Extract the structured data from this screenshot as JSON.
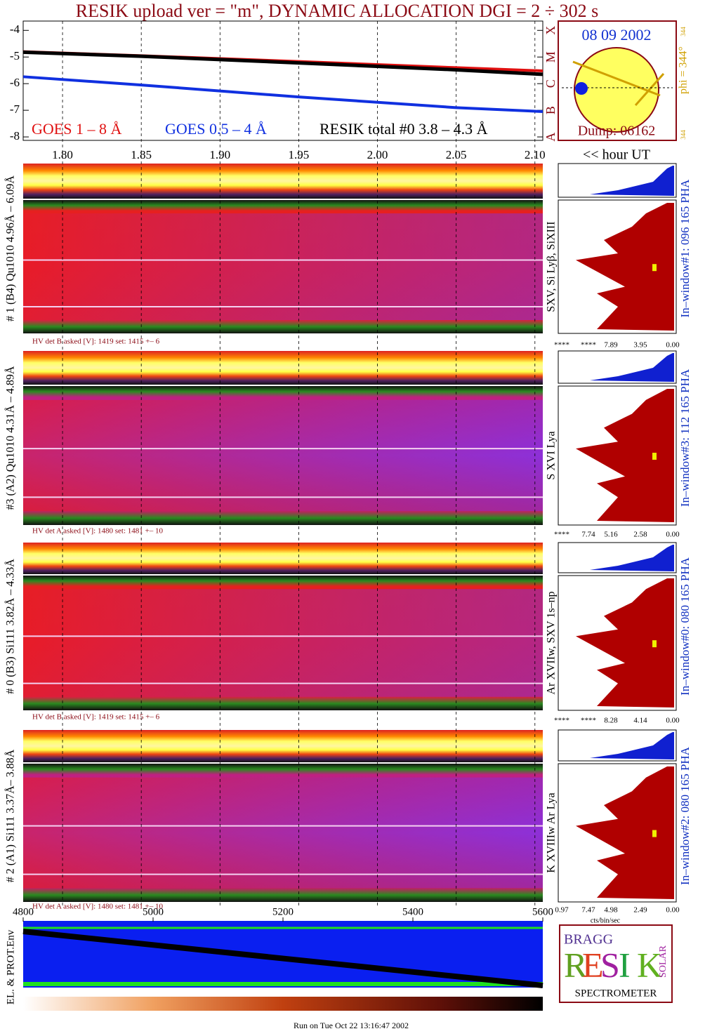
{
  "header": {
    "title": "RESIK upload ver = \"m\", DYNAMIC ALLOCATION  DGI =   2 ÷ 302 s",
    "footer": "Run on Tue Oct 22 13:16:47 2002"
  },
  "chart_data": [
    {
      "type": "line",
      "x_label": "<< hour UT",
      "x": [
        1.775,
        1.85,
        1.95,
        2.05,
        2.105
      ],
      "series": [
        {
          "name": "GOES 1 – 8 Å",
          "color": "#e01010",
          "values": [
            -4.8,
            -4.95,
            -5.17,
            -5.4,
            -5.52
          ]
        },
        {
          "name": "GOES 0.5 – 4 Å",
          "color": "#1030e0",
          "values": [
            -5.74,
            -6.05,
            -6.5,
            -6.9,
            -7.05
          ]
        },
        {
          "name": "RESIK total #0  3.8 – 4.3 Å",
          "color": "#000000",
          "values": [
            -4.82,
            -4.97,
            -5.22,
            -5.48,
            -5.65
          ]
        }
      ],
      "xlim": [
        1.775,
        2.105
      ],
      "xticks": [
        {
          "value": 1.8,
          "label": "1.80"
        },
        {
          "value": 1.85,
          "label": "1.85"
        },
        {
          "value": 1.9,
          "label": "1.90"
        },
        {
          "value": 1.95,
          "label": "1.95"
        },
        {
          "value": 2,
          "label": "2.00"
        },
        {
          "value": 2.05,
          "label": "2.05"
        },
        {
          "value": 2.1,
          "label": "2.10"
        }
      ],
      "ylim": [
        -8.13,
        -3.65
      ],
      "yticks": [
        -4,
        -5,
        -6,
        -7,
        -8
      ],
      "y2lim": [
        -8.13,
        -3.65
      ],
      "y2ticks": [
        {
          "value": -8,
          "label": "A"
        },
        {
          "value": -7,
          "label": "B"
        },
        {
          "value": -6,
          "label": "C"
        },
        {
          "value": -5,
          "label": "M"
        },
        {
          "value": -4,
          "label": "X"
        }
      ],
      "grid": true
    },
    {
      "type": "line",
      "y_label": "EL. & PROT.Env",
      "xlim": [
        4800,
        5600
      ],
      "xticks": [
        4800,
        5000,
        5200,
        5400,
        5600
      ]
    }
  ],
  "sun": {
    "date": "08 09 2002",
    "dump": "Dump: 06162",
    "phi": "phi = 344°",
    "phi_top": "344",
    "phi_bottom": "344"
  },
  "panels": [
    {
      "label": "# 1 (B4) Qu1010 4.96Å – 6.09Å",
      "lines": "SXV, Si Lyβ, SiXIII",
      "hv": "HV det B asked [V]:  1419 set:  1415 +–    6",
      "pha": "In–window#1:  096 165 PHA",
      "pha_ticks": [
        "****",
        "****",
        "7.89",
        "3.95",
        "0.00"
      ]
    },
    {
      "label": "#3 (A2) Qu1010  4.31Å – 4.89Å",
      "lines": "S XVI Lya",
      "hv": "HV det A asked [V]:  1480 set:  1481 +–    10",
      "pha": "In–window#3:  112 165 PHA",
      "pha_ticks": [
        "****",
        "7.74",
        "5.16",
        "2.58",
        "0.00"
      ]
    },
    {
      "label": "# 0 (B3) Si111  3.82Å – 4.33Å",
      "lines": "Ar XVIIw,  SXV 1s–np",
      "hv": "HV det B asked [V]:  1419 set:  1415 +–    6",
      "pha": "In–window#0:  080 165 PHA",
      "pha_ticks": [
        "****",
        "****",
        "8.28",
        "4.14",
        "0.00"
      ]
    },
    {
      "label": "# 2 (A1) Si111  3.37Å– 3.88Å",
      "lines": "K XVIIIw  Ar Lya",
      "hv": "HV det A asked [V]:  1480 set:  1481 +–    10",
      "pha": "In–window#2:  080 165 PHA",
      "pha_ticks": [
        "0.97",
        "7.47",
        "4.98",
        "2.49",
        "0.00"
      ]
    }
  ],
  "pha_xlabel": "cts/bin/sec",
  "logo": {
    "bragg": "BRAGG",
    "letters": [
      "R",
      "E",
      "S",
      "I",
      "K"
    ],
    "solar": "SOLAR",
    "caption": "SPECTROMETER"
  }
}
